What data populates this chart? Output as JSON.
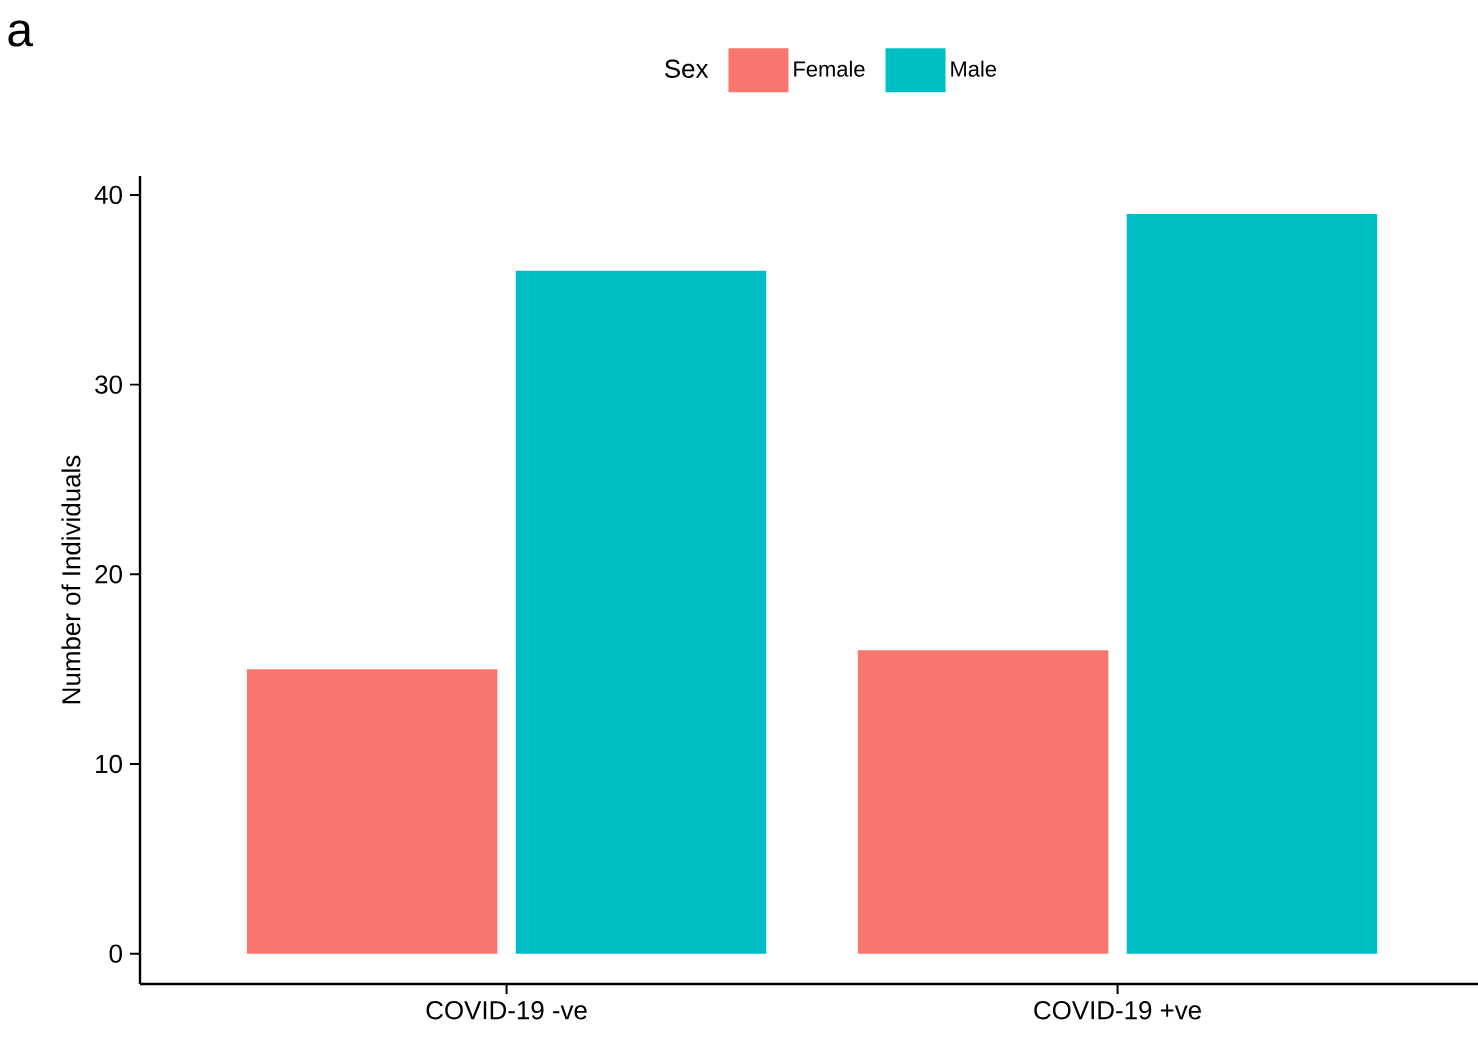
{
  "chart_data": {
    "type": "bar",
    "categories": [
      "COVID-19 -ve",
      "COVID-19 +ve"
    ],
    "ylabel": "Number of Individuals",
    "legend_title": "Sex",
    "annotations": [
      "a"
    ],
    "series": [
      {
        "name": "Female",
        "color": "#f8766d",
        "values": [
          15,
          16
        ]
      },
      {
        "name": "Male",
        "color": "#00bfc4",
        "values": [
          36,
          39
        ]
      }
    ],
    "ylim": [
      -1.6,
      41
    ],
    "yticks": [
      0,
      10,
      20,
      30,
      40
    ],
    "grid": false,
    "legend": "top"
  }
}
